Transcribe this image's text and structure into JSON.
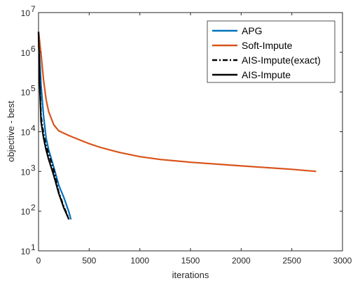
{
  "chart_data": {
    "type": "line",
    "xlabel": "iterations",
    "ylabel": "objective - best",
    "xlim": [
      0,
      3000
    ],
    "ylim": [
      10,
      10000000
    ],
    "yscale": "log",
    "grid": false,
    "legend_position": "top-right",
    "x_ticks": [
      {
        "value": 0,
        "label": "0"
      },
      {
        "value": 500,
        "label": "500"
      },
      {
        "value": 1000,
        "label": "1000"
      },
      {
        "value": 1500,
        "label": "1500"
      },
      {
        "value": 2000,
        "label": "2000"
      },
      {
        "value": 2500,
        "label": "2500"
      },
      {
        "value": 3000,
        "label": "3000"
      }
    ],
    "y_ticks": [
      {
        "value": 10,
        "base": "10",
        "exp": "1"
      },
      {
        "value": 100,
        "base": "10",
        "exp": "2"
      },
      {
        "value": 1000,
        "base": "10",
        "exp": "3"
      },
      {
        "value": 10000,
        "base": "10",
        "exp": "4"
      },
      {
        "value": 100000,
        "base": "10",
        "exp": "5"
      },
      {
        "value": 1000000,
        "base": "10",
        "exp": "6"
      },
      {
        "value": 10000000,
        "base": "10",
        "exp": "7"
      }
    ],
    "series": [
      {
        "name": "APG",
        "color": "#0072BD",
        "dash": "solid",
        "x": [
          0,
          10,
          25,
          50,
          75,
          100,
          150,
          200,
          250,
          300,
          320
        ],
        "y": [
          3000000,
          900000,
          150000,
          25000,
          7000,
          3500,
          1300,
          450,
          220,
          95,
          62
        ]
      },
      {
        "name": "Soft-Impute",
        "color": "#D95319",
        "dash": "solid",
        "x": [
          0,
          25,
          50,
          75,
          100,
          150,
          200,
          300,
          400,
          500,
          600,
          700,
          800,
          1000,
          1200,
          1500,
          2000,
          2500,
          2740
        ],
        "y": [
          3300000,
          900000,
          200000,
          65000,
          32000,
          15000,
          10500,
          8000,
          6300,
          5000,
          4100,
          3500,
          3000,
          2350,
          2000,
          1700,
          1380,
          1130,
          1000
        ]
      },
      {
        "name": "AIS-Impute(exact)",
        "color": "#000000",
        "dash": "dashdot",
        "x": [
          0,
          10,
          25,
          50,
          75,
          100,
          150,
          200,
          250,
          295
        ],
        "y": [
          3000000,
          300000,
          25000,
          9000,
          4500,
          2800,
          1100,
          300,
          130,
          68
        ]
      },
      {
        "name": "AIS-Impute",
        "color": "#000000",
        "dash": "solid",
        "x": [
          0,
          10,
          25,
          50,
          75,
          100,
          150,
          200,
          250,
          300
        ],
        "y": [
          3300000,
          200000,
          18000,
          7000,
          3500,
          2000,
          800,
          280,
          120,
          62
        ]
      }
    ]
  }
}
